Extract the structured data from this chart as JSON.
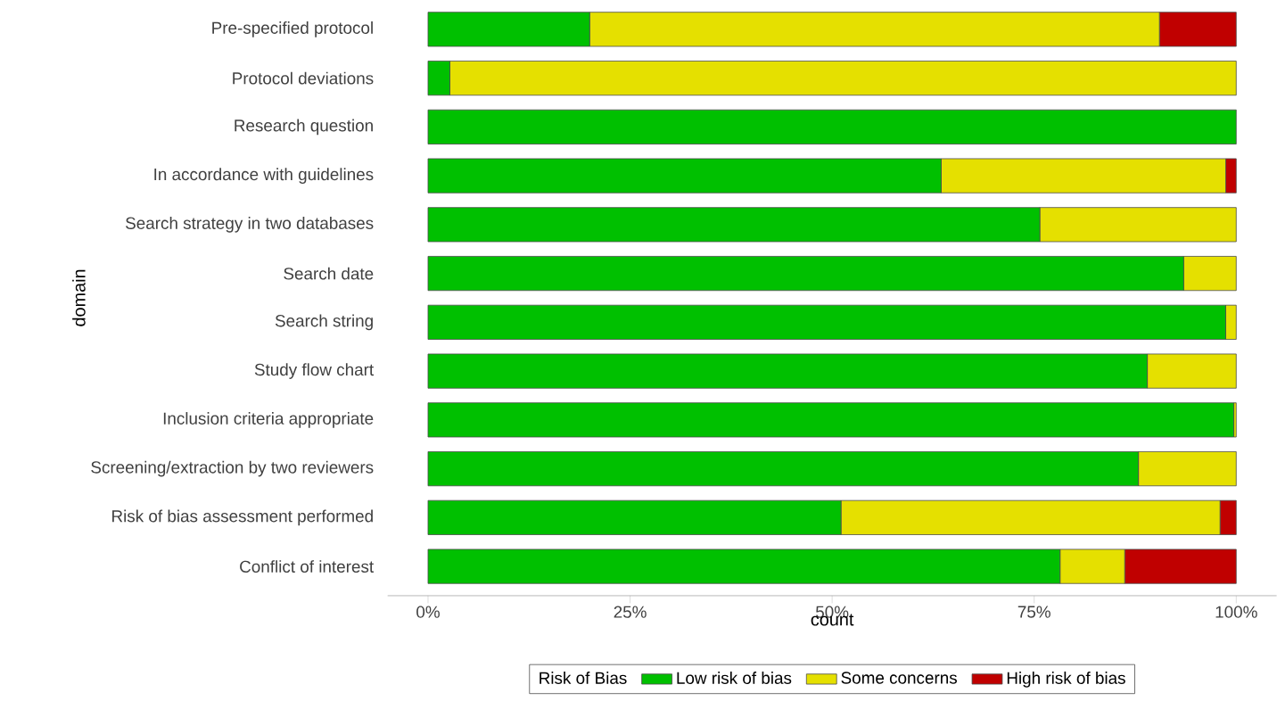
{
  "chart_data": {
    "type": "bar",
    "orientation": "horizontal",
    "stacked": true,
    "categories": [
      "Pre-specified protocol",
      "Protocol deviations",
      "Research question",
      "In accordance with guidelines",
      "Search strategy in two databases",
      "Search date",
      "Search string",
      "Study flow chart",
      "Inclusion criteria appropriate",
      "Screening/extraction by two reviewers",
      "Risk of bias assessment performed",
      "Conflict of interest"
    ],
    "series": [
      {
        "name": "Low risk of bias",
        "color": "#00c000",
        "values": [
          20.0,
          2.7,
          100,
          63.5,
          75.7,
          93.5,
          98.7,
          89.0,
          99.7,
          87.9,
          51.1,
          78.2
        ]
      },
      {
        "name": "Some concerns",
        "color": "#e5e000",
        "values": [
          70.5,
          97.3,
          null,
          35.2,
          24.3,
          6.5,
          1.3,
          11.0,
          0.3,
          12.1,
          46.9,
          8.0
        ]
      },
      {
        "name": "High risk of bias",
        "color": "#c00000",
        "values": [
          9.5,
          null,
          null,
          1.3,
          null,
          null,
          null,
          null,
          null,
          null,
          2.0,
          13.8
        ]
      }
    ],
    "xlabel": "count",
    "ylabel": "domain",
    "legend_title": "Risk of Bias",
    "legend": "bottom",
    "xlim": [
      -5,
      105
    ],
    "xticks": [
      {
        "value": 0,
        "label": "0%"
      },
      {
        "value": 25,
        "label": "25%"
      },
      {
        "value": 50,
        "label": "50%"
      },
      {
        "value": 75,
        "label": "75%"
      },
      {
        "value": 100,
        "label": "100%"
      }
    ]
  }
}
